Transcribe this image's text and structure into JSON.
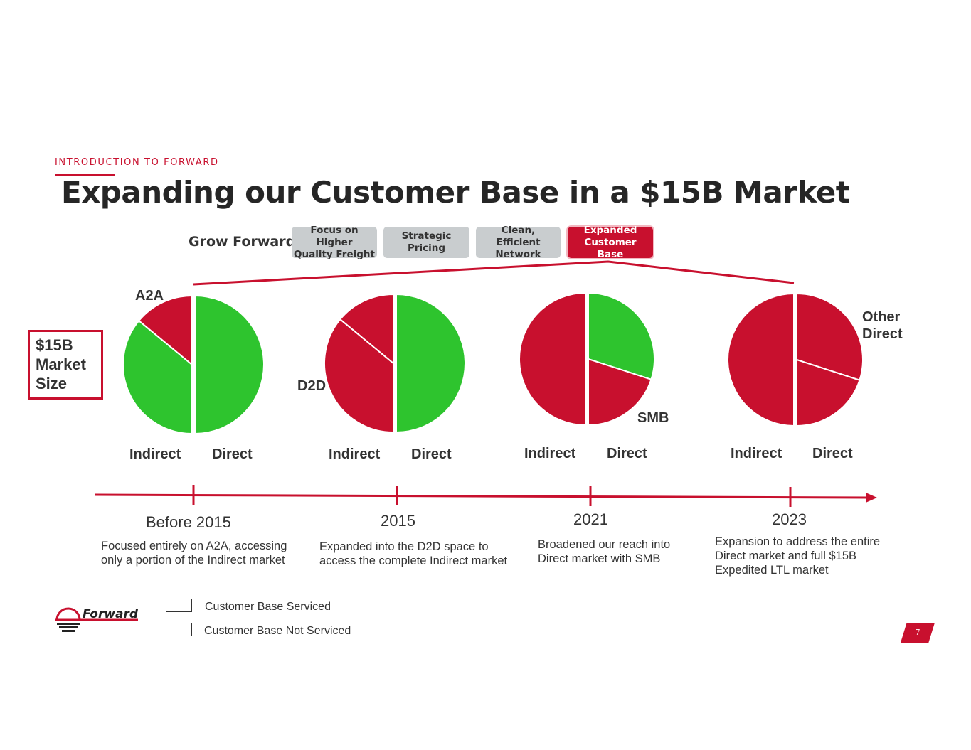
{
  "header": {
    "section": "INTRODUCTION TO FORWARD",
    "title": "Expanding our Customer Base in a $15B Market"
  },
  "grow_forward": {
    "label": "Grow Forward:",
    "pills": [
      {
        "text": "Focus on Higher\nQuality Freight",
        "active": false
      },
      {
        "text": "Strategic Pricing",
        "active": false
      },
      {
        "text": "Clean, Efficient\nNetwork",
        "active": false
      },
      {
        "text": "Expanded\nCustomer Base",
        "active": true
      }
    ]
  },
  "market_size_box": "$15B\nMarket\nSize",
  "chart_data": {
    "type": "pie",
    "colors": {
      "serviced": "#c8102e",
      "not_serviced": "#2ec42e"
    },
    "charts": [
      {
        "period": "Before 2015",
        "description": "Focused entirely on A2A, accessing only a portion of the Indirect market",
        "halves": {
          "left": "Indirect",
          "right": "Direct"
        },
        "slices": [
          {
            "half": "right",
            "fraction": 0.5,
            "serviced": false
          },
          {
            "half": "left",
            "fraction": 0.36,
            "serviced": false
          },
          {
            "half": "left",
            "fraction": 0.14,
            "serviced": true,
            "label": "A2A"
          }
        ]
      },
      {
        "period": "2015",
        "description": "Expanded into the D2D space to access the complete Indirect market",
        "halves": {
          "left": "Indirect",
          "right": "Direct"
        },
        "slices": [
          {
            "half": "right",
            "fraction": 0.5,
            "serviced": false
          },
          {
            "half": "left",
            "fraction": 0.36,
            "serviced": true,
            "label": "D2D"
          },
          {
            "half": "left",
            "fraction": 0.14,
            "serviced": true
          }
        ]
      },
      {
        "period": "2021",
        "description": "Broadened our reach into Direct market with SMB",
        "halves": {
          "left": "Indirect",
          "right": "Direct"
        },
        "slices": [
          {
            "half": "right",
            "fraction": 0.3,
            "serviced": false
          },
          {
            "half": "right",
            "fraction": 0.2,
            "serviced": true,
            "label": "SMB"
          },
          {
            "half": "left",
            "fraction": 0.5,
            "serviced": true
          }
        ]
      },
      {
        "period": "2023",
        "description": "Expansion to address the entire Direct market and full $15B Expedited LTL market",
        "halves": {
          "left": "Indirect",
          "right": "Direct"
        },
        "slices": [
          {
            "half": "right",
            "fraction": 0.3,
            "serviced": true,
            "label": "Other Direct"
          },
          {
            "half": "right",
            "fraction": 0.2,
            "serviced": true
          },
          {
            "half": "left",
            "fraction": 0.5,
            "serviced": true
          }
        ]
      }
    ],
    "legend": [
      {
        "label": "Customer Base Serviced",
        "serviced": true
      },
      {
        "label": "Customer Base Not Serviced",
        "serviced": false
      }
    ]
  },
  "footer": {
    "page_number": "7",
    "logo_text": "Forward"
  }
}
